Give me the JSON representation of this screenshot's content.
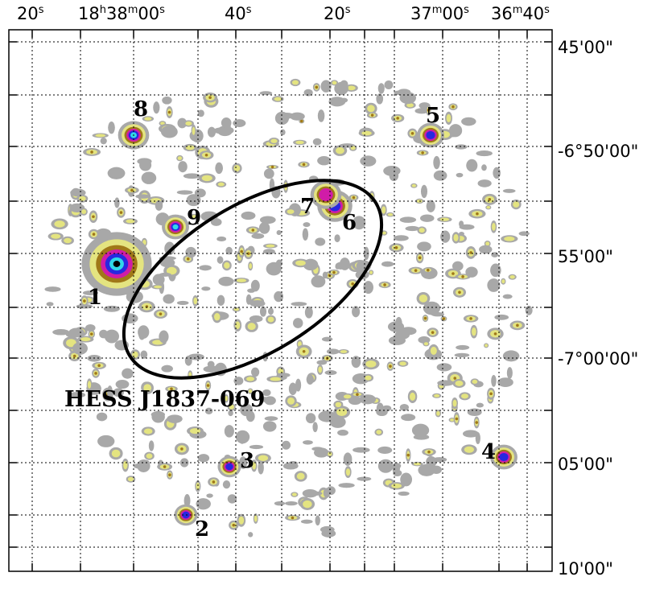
{
  "figure": {
    "ra_labels": [
      {
        "id": "ra-20s",
        "text": "20",
        "unit": "s"
      },
      {
        "id": "ra-18h38m00s",
        "text": "18h38m00s"
      },
      {
        "id": "ra-40s",
        "text": "40",
        "unit": "s"
      },
      {
        "id": "ra-20s-b",
        "text": "20",
        "unit": "s"
      },
      {
        "id": "ra-37m00s",
        "text": "37m00s"
      },
      {
        "id": "ra-36m40s",
        "text": "36m40s"
      }
    ],
    "dec_labels": [
      "45'00\"",
      "-6°50'00\"",
      "55'00\"",
      "-7°00'00\"",
      "05'00\"",
      "10'00\""
    ],
    "sources": [
      "1",
      "2",
      "3",
      "4",
      "5",
      "6",
      "7",
      "8",
      "9"
    ],
    "target_label": "HESS J1837-069",
    "colors": {
      "noise_gray": "#a8a8a8",
      "low_yellow": "#e4e480",
      "mid_brown": "#a07818",
      "magenta": "#d01ca8",
      "blue": "#2828e0",
      "cyan": "#30d8e8",
      "core_black": "#000000"
    }
  }
}
